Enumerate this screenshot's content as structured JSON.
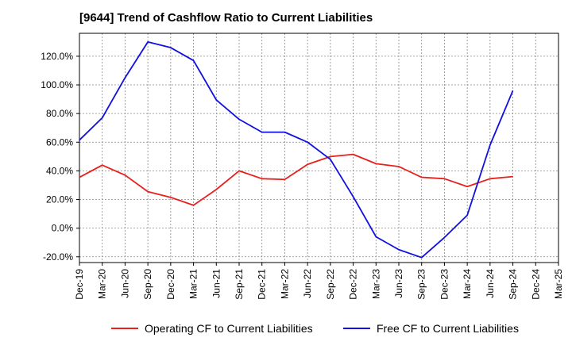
{
  "chart_data": {
    "type": "line",
    "title": "[9644]  Trend of Cashflow Ratio to Current Liabilities",
    "xlabel": "",
    "ylabel": "",
    "ylim": [
      -24,
      136
    ],
    "y_ticks": [
      -20,
      0,
      20,
      40,
      60,
      80,
      100,
      120
    ],
    "y_tick_labels": [
      "-20.0%",
      "0.0%",
      "20.0%",
      "40.0%",
      "60.0%",
      "80.0%",
      "100.0%",
      "120.0%"
    ],
    "categories": [
      "Dec-19",
      "Mar-20",
      "Jun-20",
      "Sep-20",
      "Dec-20",
      "Mar-21",
      "Jun-21",
      "Sep-21",
      "Dec-21",
      "Mar-22",
      "Jun-22",
      "Sep-22",
      "Dec-22",
      "Mar-23",
      "Jun-23",
      "Sep-23",
      "Dec-23",
      "Mar-24",
      "Jun-24",
      "Sep-24",
      "Dec-24",
      "Mar-25"
    ],
    "grid": true,
    "legend_position": "bottom",
    "series": [
      {
        "name": "Operating CF to Current Liabilities",
        "color": "#e8201c",
        "values": [
          35.5,
          44,
          37,
          25.5,
          21.5,
          16,
          27,
          40,
          34.5,
          34,
          44.5,
          50,
          51.5,
          45,
          43,
          35.5,
          34.5,
          29,
          34.5,
          36,
          null,
          null
        ]
      },
      {
        "name": "Free CF to Current Liabilities",
        "color": "#1010e0",
        "values": [
          61.5,
          77,
          105,
          130,
          126,
          117,
          89.5,
          76,
          67,
          67,
          60,
          48,
          22,
          -6,
          -15,
          -20.5,
          -6.5,
          9,
          58,
          96,
          null,
          null
        ]
      }
    ]
  }
}
